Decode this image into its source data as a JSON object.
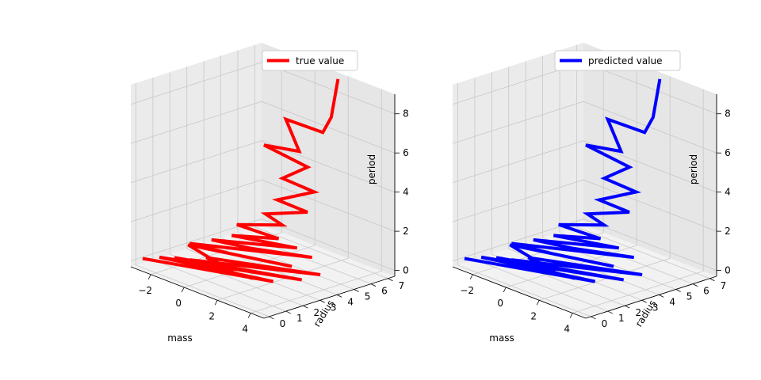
{
  "chart_data": [
    {
      "type": "line3d",
      "legend": {
        "label": "true value",
        "color": "#ff0000",
        "placement": "top-right"
      },
      "axes": {
        "xlabel": "mass",
        "ylabel": "radius",
        "zlabel": "period",
        "xticks": [
          "−2",
          "0",
          "2",
          "4"
        ],
        "yticks": [
          "0",
          "1",
          "2",
          "3",
          "4",
          "5",
          "6",
          "7"
        ],
        "zticks": [
          "0",
          "2",
          "4",
          "6",
          "8"
        ],
        "xlim": [
          -3.2,
          4.8
        ],
        "ylim": [
          -0.3,
          7.4
        ],
        "zlim": [
          -0.3,
          9.0
        ]
      },
      "series": [
        {
          "name": "true value",
          "color": "#ff0000",
          "points": [
            [
              -3.0,
              0.2,
              0.05
            ],
            [
              2.6,
              2.4,
              0.1
            ],
            [
              -2.4,
              0.6,
              0.2
            ],
            [
              3.4,
              3.3,
              0.2
            ],
            [
              -1.8,
              0.9,
              0.3
            ],
            [
              2.2,
              1.6,
              0.35
            ],
            [
              -1.2,
              1.2,
              0.3
            ],
            [
              3.8,
              4.0,
              0.4
            ],
            [
              -0.6,
              1.6,
              0.5
            ],
            [
              1.5,
              1.1,
              0.6
            ],
            [
              -2.0,
              1.9,
              0.6
            ],
            [
              2.9,
              3.2,
              0.75
            ],
            [
              0.2,
              2.2,
              0.8
            ],
            [
              -1.5,
              1.5,
              0.95
            ],
            [
              3.1,
              4.2,
              1.0
            ],
            [
              0.8,
              2.8,
              1.1
            ],
            [
              -0.8,
              2.1,
              1.2
            ],
            [
              2.4,
              4.0,
              1.3
            ],
            [
              -0.2,
              2.7,
              1.45
            ],
            [
              1.6,
              3.7,
              1.6
            ],
            [
              -0.4,
              3.2,
              1.8
            ],
            [
              1.2,
              4.3,
              2.0
            ],
            [
              0.3,
              4.2,
              2.3
            ],
            [
              1.8,
              5.2,
              2.6
            ],
            [
              0.6,
              4.6,
              3.0
            ],
            [
              1.6,
              5.8,
              3.4
            ],
            [
              0.4,
              5.1,
              3.9
            ],
            [
              1.3,
              5.7,
              4.6
            ],
            [
              -0.1,
              4.5,
              5.6
            ],
            [
              0.9,
              5.6,
              5.3
            ],
            [
              0.3,
              5.4,
              6.8
            ],
            [
              1.6,
              6.3,
              6.3
            ],
            [
              1.7,
              6.7,
              7.0
            ],
            [
              1.8,
              7.0,
              8.9
            ]
          ]
        }
      ]
    },
    {
      "type": "line3d",
      "legend": {
        "label": "predicted value",
        "color": "#0000ff",
        "placement": "top-right"
      },
      "axes": {
        "xlabel": "mass",
        "ylabel": "radius",
        "zlabel": "period",
        "xticks": [
          "−2",
          "0",
          "2",
          "4"
        ],
        "yticks": [
          "0",
          "1",
          "2",
          "3",
          "4",
          "5",
          "6",
          "7"
        ],
        "zticks": [
          "0",
          "2",
          "4",
          "6",
          "8"
        ],
        "xlim": [
          -3.2,
          4.8
        ],
        "ylim": [
          -0.3,
          7.4
        ],
        "zlim": [
          -0.3,
          9.0
        ]
      },
      "series": [
        {
          "name": "predicted value",
          "color": "#0000ff",
          "points": [
            [
              -3.0,
              0.2,
              0.05
            ],
            [
              2.6,
              2.4,
              0.1
            ],
            [
              -2.4,
              0.6,
              0.2
            ],
            [
              3.4,
              3.3,
              0.2
            ],
            [
              -1.8,
              0.9,
              0.3
            ],
            [
              2.2,
              1.6,
              0.35
            ],
            [
              -1.2,
              1.2,
              0.3
            ],
            [
              3.8,
              4.0,
              0.4
            ],
            [
              -0.6,
              1.6,
              0.5
            ],
            [
              1.5,
              1.1,
              0.6
            ],
            [
              -2.0,
              1.9,
              0.6
            ],
            [
              2.9,
              3.2,
              0.75
            ],
            [
              0.2,
              2.2,
              0.8
            ],
            [
              -1.5,
              1.5,
              0.95
            ],
            [
              3.1,
              4.2,
              1.0
            ],
            [
              0.8,
              2.8,
              1.1
            ],
            [
              -0.8,
              2.1,
              1.2
            ],
            [
              2.4,
              4.0,
              1.3
            ],
            [
              -0.2,
              2.7,
              1.45
            ],
            [
              1.6,
              3.7,
              1.6
            ],
            [
              -0.4,
              3.2,
              1.8
            ],
            [
              1.2,
              4.3,
              2.0
            ],
            [
              0.3,
              4.2,
              2.3
            ],
            [
              1.8,
              5.2,
              2.6
            ],
            [
              0.6,
              4.6,
              3.0
            ],
            [
              1.6,
              5.8,
              3.4
            ],
            [
              0.4,
              5.1,
              3.9
            ],
            [
              1.3,
              5.7,
              4.6
            ],
            [
              -0.1,
              4.5,
              5.6
            ],
            [
              0.9,
              5.6,
              5.3
            ],
            [
              0.3,
              5.4,
              6.8
            ],
            [
              1.6,
              6.3,
              6.3
            ],
            [
              1.7,
              6.7,
              7.0
            ],
            [
              1.8,
              7.0,
              8.9
            ]
          ]
        }
      ]
    }
  ]
}
